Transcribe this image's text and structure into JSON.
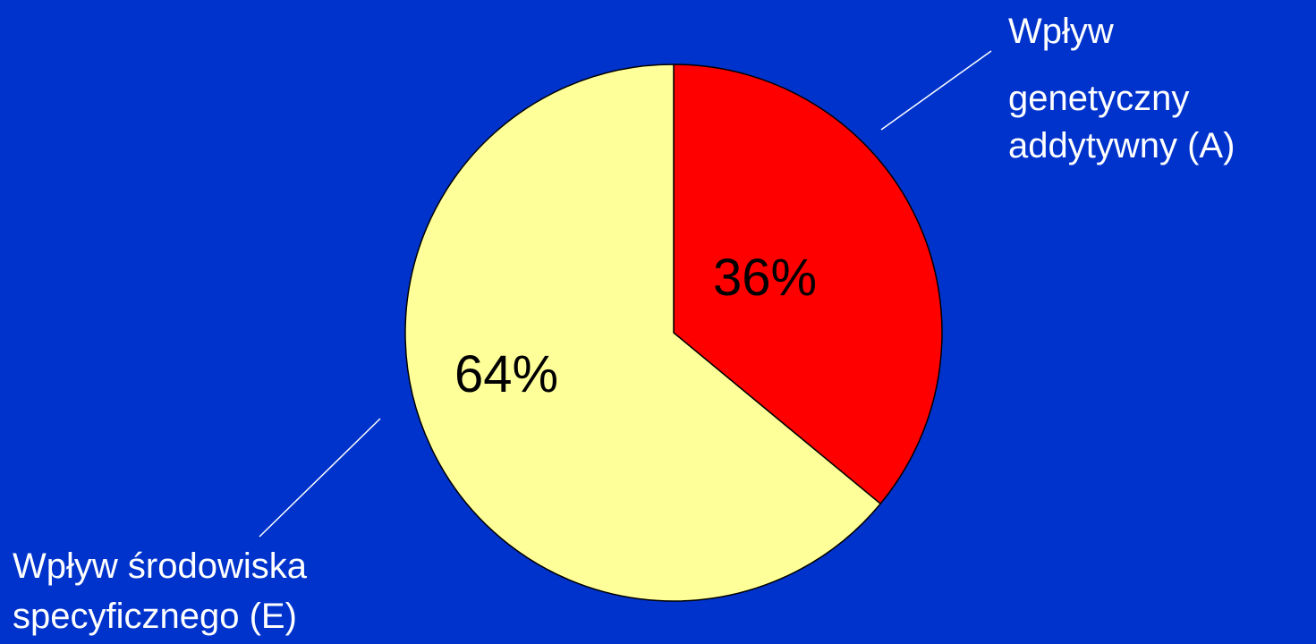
{
  "colors": {
    "background": "#0033cc",
    "outline": "#000000",
    "leader_line": "#ffffff",
    "callout_text": "#ffffff",
    "slice_text": "#000000"
  },
  "chart_data": {
    "type": "pie",
    "title": "",
    "start": "12 o'clock",
    "direction": "clockwise",
    "slices": [
      {
        "value": 36,
        "value_label": "36%",
        "color": "#ff0000",
        "label_lines": [
          "Wpływ",
          "genetyczny",
          "addytywny (A)"
        ]
      },
      {
        "value": 64,
        "value_label": "64%",
        "color": "#ffff99",
        "label_lines": [
          "Wpływ środowiska",
          "specyficznego (E)"
        ]
      }
    ]
  }
}
